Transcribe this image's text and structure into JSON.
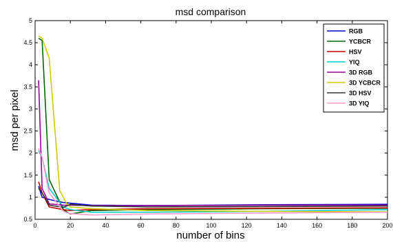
{
  "chart_data": {
    "type": "line",
    "title": "msd comparison",
    "xlabel": "number of bins",
    "ylabel": "msd per pixel",
    "xlim": [
      0,
      200
    ],
    "ylim": [
      0.5,
      5
    ],
    "xticks": [
      0,
      20,
      40,
      60,
      80,
      100,
      120,
      140,
      160,
      180,
      200
    ],
    "yticks": [
      0.5,
      1,
      1.5,
      2,
      2.5,
      3,
      3.5,
      4,
      4.5,
      5
    ],
    "grid": false,
    "legend_position": "top-right",
    "series": [
      {
        "name": "RGB",
        "color": "#0000cc",
        "x": [
          2,
          4,
          8,
          16,
          32,
          64,
          100,
          128,
          200
        ],
        "y": [
          1.25,
          1.0,
          0.95,
          0.88,
          0.82,
          0.81,
          0.82,
          0.83,
          0.84
        ]
      },
      {
        "name": "YCBCR",
        "color": "#006600",
        "x": [
          2,
          4,
          8,
          16,
          20,
          32,
          64,
          100,
          128,
          200
        ],
        "y": [
          4.6,
          4.55,
          1.4,
          0.72,
          0.62,
          0.7,
          0.72,
          0.73,
          0.74,
          0.75
        ]
      },
      {
        "name": "HSV",
        "color": "#cc0000",
        "x": [
          2,
          4,
          8,
          16,
          20,
          32,
          64,
          128,
          200
        ],
        "y": [
          1.35,
          1.1,
          0.78,
          0.72,
          0.7,
          0.72,
          0.74,
          0.75,
          0.76
        ]
      },
      {
        "name": "YIQ",
        "color": "#00cccc",
        "x": [
          2,
          4,
          8,
          16,
          20,
          32,
          64,
          128,
          200
        ],
        "y": [
          2.05,
          1.9,
          1.2,
          0.78,
          0.72,
          0.66,
          0.66,
          0.68,
          0.72
        ]
      },
      {
        "name": "3D RGB",
        "color": "#990099",
        "x": [
          2,
          4,
          8,
          16,
          20,
          32,
          64,
          128,
          200
        ],
        "y": [
          3.65,
          1.2,
          0.85,
          0.82,
          0.82,
          0.81,
          0.81,
          0.82,
          0.82
        ]
      },
      {
        "name": "3D YCBCR",
        "color": "#cccc00",
        "x": [
          2,
          4,
          8,
          14,
          18,
          20,
          32,
          64,
          128,
          200
        ],
        "y": [
          4.65,
          4.6,
          4.15,
          1.15,
          0.85,
          0.78,
          0.74,
          0.7,
          0.68,
          0.67
        ]
      },
      {
        "name": "3D HSV",
        "color": "#333333",
        "x": [
          2,
          4,
          8,
          16,
          20,
          32,
          64,
          128,
          200
        ],
        "y": [
          1.2,
          1.1,
          0.82,
          0.77,
          0.84,
          0.8,
          0.78,
          0.79,
          0.8
        ]
      },
      {
        "name": "3D YIQ",
        "color": "#ff99cc",
        "x": [
          2,
          4,
          8,
          16,
          20,
          32,
          64,
          128,
          200
        ],
        "y": [
          2.1,
          1.9,
          1.1,
          0.68,
          0.63,
          0.6,
          0.62,
          0.64,
          0.66
        ]
      }
    ]
  }
}
